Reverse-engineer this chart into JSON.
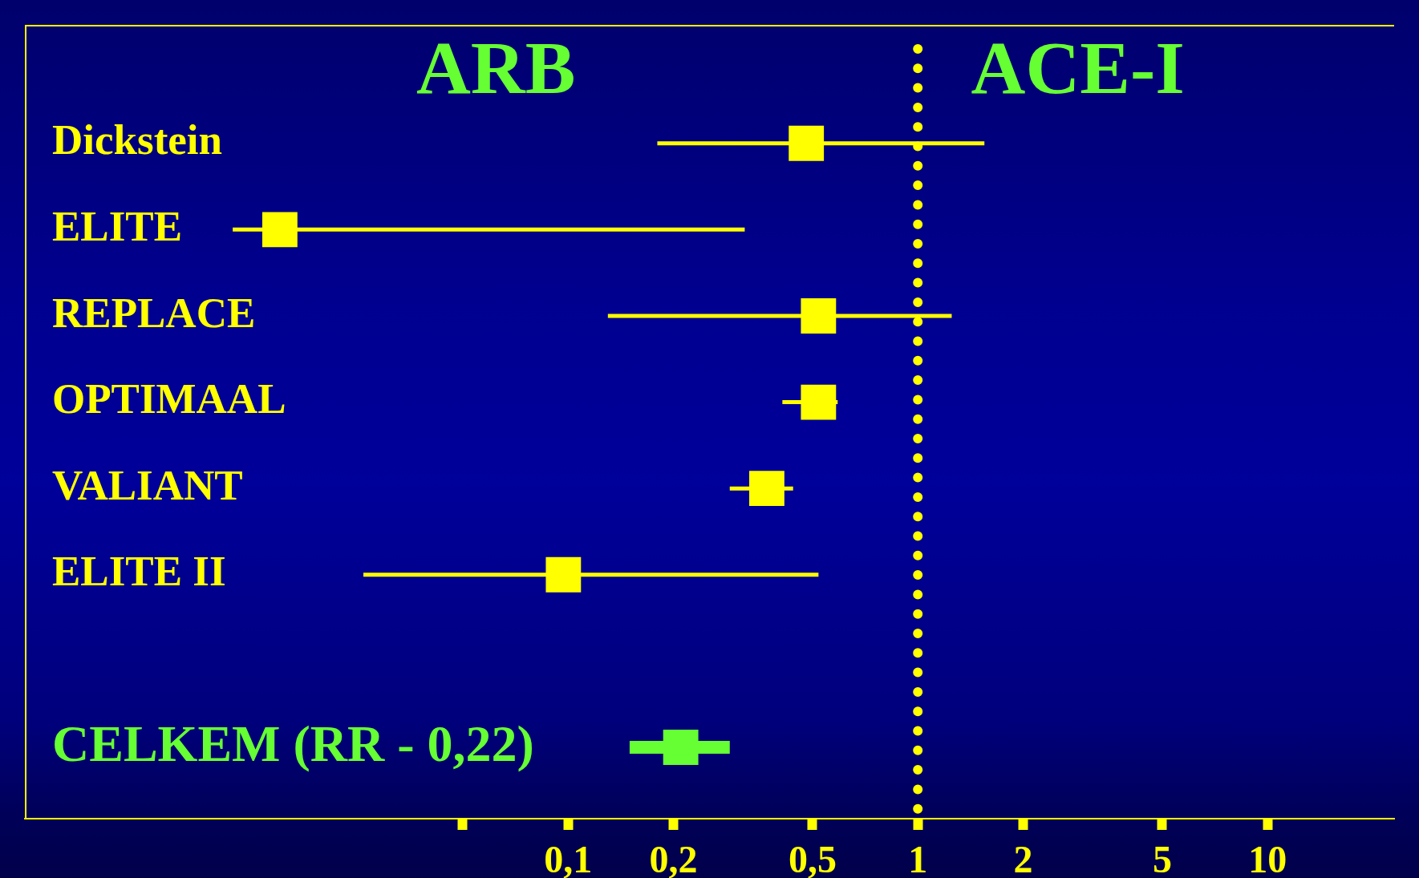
{
  "chart_data": {
    "type": "scatter",
    "orientation": "horizontal",
    "marker": "square",
    "log": "x",
    "categories": [
      "Dickstein",
      "ELITE",
      "REPLACE",
      "OPTIMAAL",
      "VALIANT",
      "ELITE II",
      null,
      "CELKEM (RR - 0,22)"
    ],
    "series": [
      {
        "color": "#ffff00",
        "values": [
          0.48,
          0.015,
          0.52,
          0.52,
          0.37,
          0.097,
          null,
          null
        ],
        "errors": [
          [
            0.18,
            1.55
          ],
          [
            0.011,
            0.32
          ],
          [
            0.13,
            1.25
          ],
          [
            0.41,
            0.59
          ],
          [
            0.29,
            0.44
          ],
          [
            0.026,
            0.52
          ],
          null,
          null
        ]
      },
      {
        "color": "#66ff33",
        "values": [
          null,
          null,
          null,
          null,
          null,
          null,
          null,
          0.21
        ],
        "errors": [
          null,
          null,
          null,
          null,
          null,
          null,
          null,
          [
            0.15,
            0.29
          ]
        ]
      }
    ],
    "xlim": [
      0.0028,
      23
    ],
    "xticks": [
      {
        "value": 0.05,
        "label": null
      },
      {
        "value": 0.1,
        "label": "0,1"
      },
      {
        "value": 0.2,
        "label": "0,2"
      },
      {
        "value": 0.5,
        "label": "0,5"
      },
      1,
      2,
      5,
      10
    ],
    "ref_lines": [
      {
        "axis": "x",
        "value": 1,
        "color": "#ffff00",
        "line_style": "dotted"
      }
    ],
    "annotations": [
      "ARB",
      "ACE-I"
    ]
  }
}
